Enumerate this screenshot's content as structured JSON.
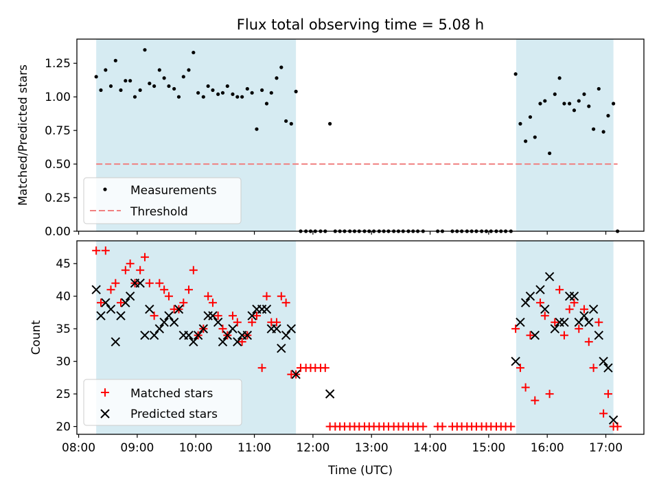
{
  "chart_data": [
    {
      "type": "scatter",
      "title": "Flux total observing time = 5.08 h",
      "xlabel": "",
      "ylabel": "Matched/Predicted stars",
      "xlim": [
        7.97,
        17.65
      ],
      "ylim": [
        0.0,
        1.43
      ],
      "yticks": [
        0.0,
        0.25,
        0.5,
        0.75,
        1.0,
        1.25
      ],
      "ytick_labels": [
        "0.00",
        "0.25",
        "0.50",
        "0.75",
        "1.00",
        "1.25"
      ],
      "shaded_intervals": [
        [
          8.3,
          11.71
        ],
        [
          15.47,
          17.13
        ]
      ],
      "threshold": {
        "name": "Threshold",
        "value": 0.5,
        "x": [
          8.3,
          17.2
        ],
        "color": "#f08080"
      },
      "legend": {
        "placement": "lower-left",
        "entries": [
          "Measurements",
          "Threshold"
        ]
      },
      "series": [
        {
          "name": "Measurements",
          "marker": "dot",
          "color": "#000000",
          "x": [
            8.3,
            8.38,
            8.46,
            8.55,
            8.63,
            8.72,
            8.8,
            8.88,
            8.96,
            9.05,
            9.13,
            9.21,
            9.29,
            9.38,
            9.46,
            9.54,
            9.63,
            9.71,
            9.79,
            9.88,
            9.96,
            10.04,
            10.13,
            10.21,
            10.29,
            10.38,
            10.46,
            10.54,
            10.63,
            10.71,
            10.79,
            10.88,
            10.96,
            11.04,
            11.13,
            11.21,
            11.29,
            11.38,
            11.46,
            11.54,
            11.63,
            11.71,
            11.79,
            11.88,
            11.96,
            12.04,
            12.13,
            12.21,
            12.29,
            12.38,
            12.46,
            12.54,
            12.63,
            12.71,
            12.79,
            12.88,
            12.96,
            13.04,
            13.13,
            13.21,
            13.29,
            13.38,
            13.46,
            13.54,
            13.63,
            13.71,
            13.79,
            13.88,
            14.13,
            14.21,
            14.38,
            14.46,
            14.54,
            14.63,
            14.71,
            14.79,
            14.88,
            14.96,
            15.04,
            15.13,
            15.21,
            15.29,
            15.38,
            15.46,
            15.54,
            15.63,
            15.71,
            15.79,
            15.88,
            15.96,
            16.04,
            16.13,
            16.21,
            16.29,
            16.38,
            16.46,
            16.54,
            16.63,
            16.71,
            16.79,
            16.88,
            16.96,
            17.04,
            17.13,
            17.2
          ],
          "y": [
            1.15,
            1.05,
            1.2,
            1.08,
            1.27,
            1.05,
            1.12,
            1.12,
            1.0,
            1.05,
            1.35,
            1.1,
            1.08,
            1.2,
            1.14,
            1.08,
            1.06,
            1.0,
            1.15,
            1.2,
            1.33,
            1.03,
            1.0,
            1.08,
            1.05,
            1.02,
            1.03,
            1.08,
            1.02,
            1.0,
            1.0,
            1.06,
            1.03,
            0.76,
            1.05,
            0.95,
            1.03,
            1.14,
            1.22,
            0.82,
            0.8,
            1.04,
            0,
            0,
            0,
            0,
            0,
            0,
            0.8,
            0,
            0,
            0,
            0,
            0,
            0,
            0,
            0,
            0,
            0,
            0,
            0,
            0,
            0,
            0,
            0,
            0,
            0,
            0,
            0,
            0,
            0,
            0,
            0,
            0,
            0,
            0,
            0,
            0,
            0,
            0,
            0,
            0,
            0,
            1.17,
            0.8,
            0.67,
            0.85,
            0.7,
            0.95,
            0.97,
            0.58,
            1.02,
            1.14,
            0.95,
            0.95,
            0.9,
            0.97,
            1.02,
            0.93,
            0.76,
            1.06,
            0.74,
            0.86,
            0.95,
            0
          ]
        }
      ]
    },
    {
      "type": "scatter",
      "title": "",
      "xlabel": "Time (UTC)",
      "ylabel": "Count",
      "xlim": [
        7.97,
        17.65
      ],
      "ylim": [
        18.8,
        48.5
      ],
      "yticks": [
        20,
        25,
        30,
        35,
        40,
        45
      ],
      "ytick_labels": [
        "20",
        "25",
        "30",
        "35",
        "40",
        "45"
      ],
      "xticks": [
        8,
        9,
        10,
        11,
        12,
        13,
        14,
        15,
        16,
        17
      ],
      "xtick_labels": [
        "08:00",
        "09:00",
        "10:00",
        "11:00",
        "12:00",
        "13:00",
        "14:00",
        "15:00",
        "16:00",
        "17:00"
      ],
      "shaded_intervals": [
        [
          8.3,
          11.71
        ],
        [
          15.47,
          17.13
        ]
      ],
      "legend": {
        "placement": "lower-left",
        "entries": [
          "Matched stars",
          "Predicted stars"
        ]
      },
      "series": [
        {
          "name": "Matched stars",
          "marker": "plus",
          "color": "#ff0000",
          "x": [
            8.3,
            8.38,
            8.46,
            8.55,
            8.63,
            8.72,
            8.8,
            8.88,
            8.96,
            9.05,
            9.13,
            9.21,
            9.29,
            9.38,
            9.46,
            9.54,
            9.63,
            9.71,
            9.79,
            9.88,
            9.96,
            10.04,
            10.13,
            10.21,
            10.29,
            10.38,
            10.46,
            10.54,
            10.63,
            10.71,
            10.79,
            10.88,
            10.96,
            11.04,
            11.13,
            11.21,
            11.29,
            11.38,
            11.46,
            11.54,
            11.63,
            11.71,
            11.79,
            11.88,
            11.96,
            12.04,
            12.13,
            12.21,
            12.29,
            12.38,
            12.46,
            12.54,
            12.63,
            12.71,
            12.79,
            12.88,
            12.96,
            13.04,
            13.13,
            13.21,
            13.29,
            13.38,
            13.46,
            13.54,
            13.63,
            13.71,
            13.79,
            13.88,
            14.13,
            14.21,
            14.38,
            14.46,
            14.54,
            14.63,
            14.71,
            14.79,
            14.88,
            14.96,
            15.04,
            15.13,
            15.21,
            15.29,
            15.38,
            15.46,
            15.54,
            15.63,
            15.71,
            15.79,
            15.88,
            15.96,
            16.04,
            16.13,
            16.21,
            16.29,
            16.38,
            16.46,
            16.54,
            16.63,
            16.71,
            16.79,
            16.88,
            16.96,
            17.04,
            17.13,
            17.2
          ],
          "y": [
            47,
            39,
            47,
            41,
            42,
            39,
            44,
            45,
            42,
            44,
            46,
            42,
            37,
            42,
            41,
            40,
            38,
            38,
            39,
            41,
            44,
            34,
            35,
            40,
            39,
            37,
            35,
            34,
            37,
            36,
            33,
            34,
            36,
            37,
            29,
            40,
            36,
            36,
            40,
            39,
            28,
            28,
            29,
            29,
            29,
            29,
            29,
            29,
            20,
            20,
            20,
            20,
            20,
            20,
            20,
            20,
            20,
            20,
            20,
            20,
            20,
            20,
            20,
            20,
            20,
            20,
            20,
            20,
            20,
            20,
            20,
            20,
            20,
            20,
            20,
            20,
            20,
            20,
            20,
            20,
            20,
            20,
            20,
            35,
            29,
            26,
            34,
            24,
            39,
            37,
            25,
            36,
            41,
            34,
            38,
            39,
            35,
            38,
            33,
            29,
            36,
            22,
            25,
            20,
            20
          ]
        },
        {
          "name": "Predicted stars",
          "marker": "x",
          "color": "#000000",
          "x": [
            8.3,
            8.38,
            8.46,
            8.55,
            8.63,
            8.72,
            8.8,
            8.88,
            8.96,
            9.05,
            9.13,
            9.21,
            9.29,
            9.38,
            9.46,
            9.54,
            9.63,
            9.71,
            9.79,
            9.88,
            9.96,
            10.04,
            10.13,
            10.21,
            10.29,
            10.38,
            10.46,
            10.54,
            10.63,
            10.71,
            10.79,
            10.88,
            10.96,
            11.04,
            11.13,
            11.21,
            11.29,
            11.38,
            11.46,
            11.54,
            11.63,
            11.71,
            12.29,
            15.46,
            15.54,
            15.63,
            15.71,
            15.79,
            15.88,
            15.96,
            16.04,
            16.13,
            16.21,
            16.29,
            16.38,
            16.46,
            16.54,
            16.63,
            16.71,
            16.79,
            16.88,
            16.96,
            17.04,
            17.13
          ],
          "y": [
            41,
            37,
            39,
            38,
            33,
            37,
            39,
            40,
            42,
            42,
            34,
            38,
            34,
            35,
            36,
            37,
            36,
            38,
            34,
            34,
            33,
            34,
            35,
            37,
            37,
            36,
            33,
            34,
            35,
            33,
            34,
            34,
            37,
            38,
            38,
            38,
            35,
            35,
            32,
            34,
            35,
            28,
            25,
            30,
            36,
            39,
            40,
            34,
            41,
            38,
            43,
            35,
            36,
            36,
            40,
            40,
            36,
            37,
            36,
            38,
            34,
            30,
            29,
            21
          ]
        }
      ]
    }
  ]
}
